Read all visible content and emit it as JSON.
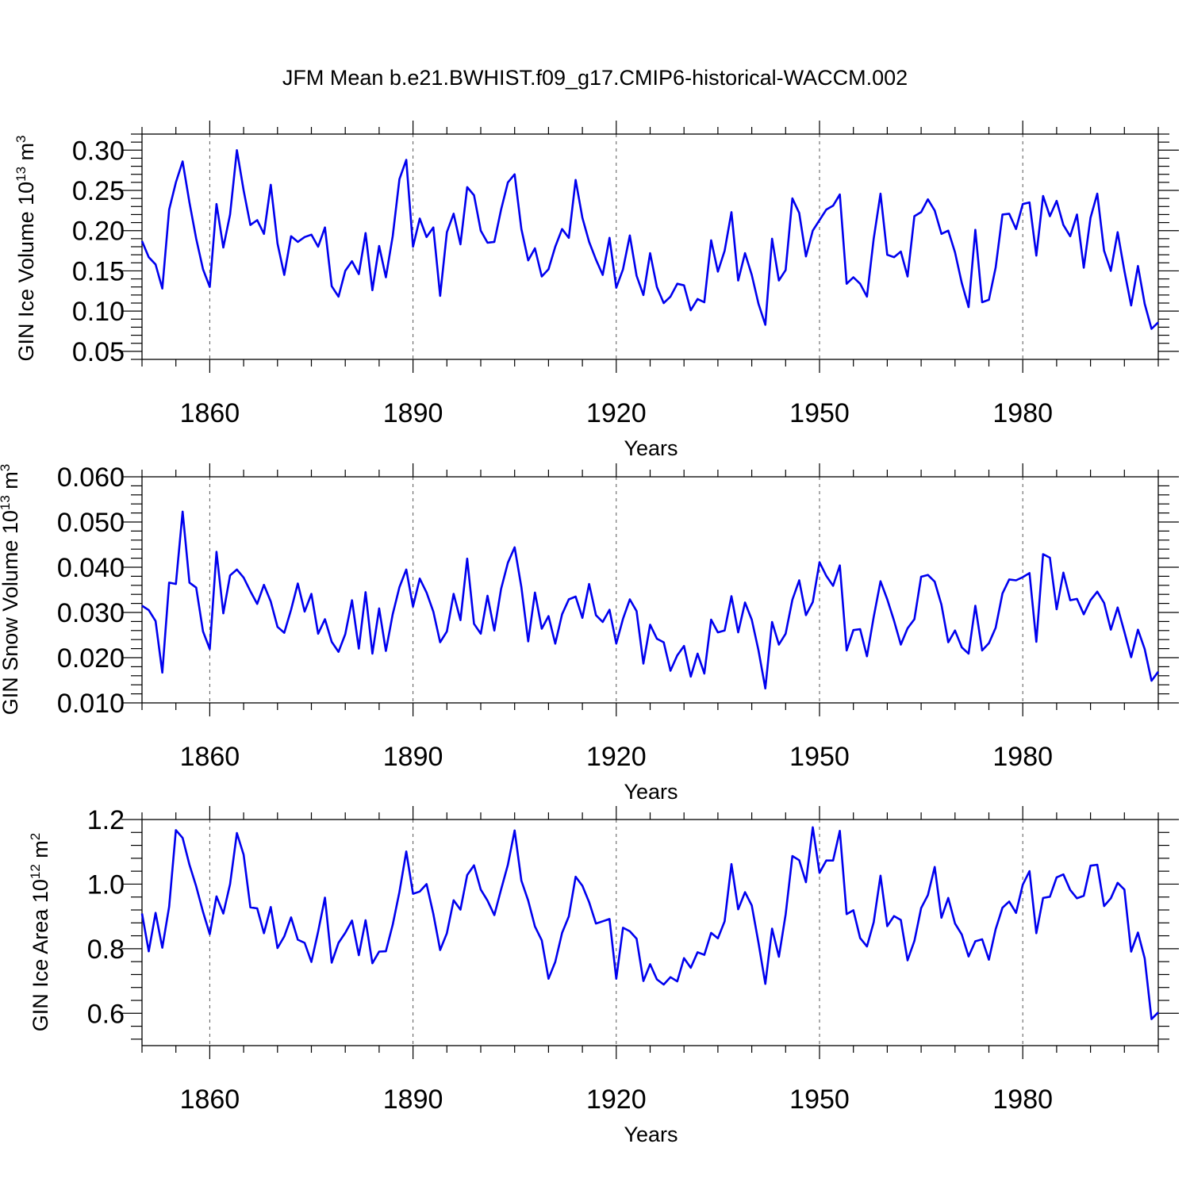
{
  "title": "JFM Mean b.e21.BWHIST.f09_g17.CMIP6-historical-WACCM.002",
  "colors": {
    "line": "#0000ee",
    "frame": "#000000",
    "grid": "#555555"
  },
  "chart_data": [
    {
      "type": "line",
      "ylabel": {
        "base": "GIN Ice Volume 10",
        "exp": "13",
        "unit": " m",
        "unit_exp": "3"
      },
      "xlabel": "Years",
      "xlim": [
        1850,
        2000
      ],
      "ylim": [
        0.04,
        0.32
      ],
      "xticks": [
        1860,
        1890,
        1920,
        1950,
        1980
      ],
      "xtick_labels": [
        "1860",
        "1890",
        "1920",
        "1950",
        "1980"
      ],
      "yticks": [
        0.05,
        0.1,
        0.15,
        0.2,
        0.25,
        0.3
      ],
      "ytick_labels": [
        "0.05",
        "0.10",
        "0.15",
        "0.20",
        "0.25",
        "0.30"
      ],
      "start_year": 1850,
      "values": [
        0.187,
        0.167,
        0.158,
        0.128,
        0.226,
        0.26,
        0.286,
        0.235,
        0.19,
        0.152,
        0.13,
        0.233,
        0.179,
        0.22,
        0.3,
        0.25,
        0.207,
        0.213,
        0.196,
        0.257,
        0.184,
        0.145,
        0.193,
        0.186,
        0.192,
        0.195,
        0.18,
        0.204,
        0.131,
        0.118,
        0.15,
        0.162,
        0.146,
        0.197,
        0.126,
        0.181,
        0.142,
        0.193,
        0.264,
        0.288,
        0.18,
        0.215,
        0.192,
        0.204,
        0.119,
        0.198,
        0.221,
        0.183,
        0.254,
        0.244,
        0.2,
        0.185,
        0.186,
        0.226,
        0.26,
        0.27,
        0.202,
        0.163,
        0.178,
        0.143,
        0.152,
        0.18,
        0.202,
        0.191,
        0.263,
        0.216,
        0.186,
        0.164,
        0.145,
        0.191,
        0.129,
        0.152,
        0.194,
        0.144,
        0.12,
        0.172,
        0.13,
        0.11,
        0.118,
        0.134,
        0.132,
        0.101,
        0.115,
        0.111,
        0.188,
        0.149,
        0.175,
        0.223,
        0.138,
        0.172,
        0.145,
        0.109,
        0.083,
        0.19,
        0.138,
        0.151,
        0.24,
        0.222,
        0.168,
        0.2,
        0.213,
        0.226,
        0.231,
        0.245,
        0.134,
        0.142,
        0.134,
        0.118,
        0.19,
        0.246,
        0.17,
        0.167,
        0.174,
        0.143,
        0.218,
        0.223,
        0.239,
        0.225,
        0.196,
        0.2,
        0.173,
        0.135,
        0.105,
        0.201,
        0.111,
        0.114,
        0.154,
        0.22,
        0.221,
        0.202,
        0.233,
        0.235,
        0.169,
        0.243,
        0.218,
        0.237,
        0.207,
        0.193,
        0.22,
        0.154,
        0.216,
        0.246,
        0.175,
        0.15,
        0.198,
        0.15,
        0.107,
        0.156,
        0.109,
        0.078,
        0.086
      ]
    },
    {
      "type": "line",
      "ylabel": {
        "base": "GIN Snow Volume 10",
        "exp": "13",
        "unit": " m",
        "unit_exp": "3"
      },
      "xlabel": "Years",
      "xlim": [
        1850,
        2000
      ],
      "ylim": [
        0.01,
        0.06
      ],
      "xticks": [
        1860,
        1890,
        1920,
        1950,
        1980
      ],
      "xtick_labels": [
        "1860",
        "1890",
        "1920",
        "1950",
        "1980"
      ],
      "yticks": [
        0.01,
        0.02,
        0.03,
        0.04,
        0.05,
        0.06
      ],
      "ytick_labels": [
        "0.010",
        "0.020",
        "0.030",
        "0.040",
        "0.050",
        "0.060"
      ],
      "start_year": 1850,
      "values": [
        0.0315,
        0.0305,
        0.0281,
        0.0167,
        0.0366,
        0.0363,
        0.0523,
        0.0366,
        0.0355,
        0.0258,
        0.0219,
        0.0434,
        0.0298,
        0.0382,
        0.0395,
        0.0377,
        0.0347,
        0.0319,
        0.0361,
        0.0324,
        0.0268,
        0.0255,
        0.0306,
        0.0364,
        0.0302,
        0.0341,
        0.0253,
        0.0285,
        0.0235,
        0.0213,
        0.0252,
        0.0327,
        0.022,
        0.0345,
        0.0209,
        0.0309,
        0.0215,
        0.0296,
        0.0356,
        0.0395,
        0.0313,
        0.0375,
        0.0344,
        0.0302,
        0.0234,
        0.0258,
        0.0341,
        0.0283,
        0.0419,
        0.0275,
        0.0253,
        0.0337,
        0.026,
        0.0352,
        0.041,
        0.0444,
        0.0356,
        0.0236,
        0.0344,
        0.0264,
        0.0292,
        0.0231,
        0.0296,
        0.0329,
        0.0335,
        0.0288,
        0.0363,
        0.0294,
        0.0279,
        0.0306,
        0.0231,
        0.0286,
        0.0329,
        0.0303,
        0.0187,
        0.0273,
        0.0242,
        0.0234,
        0.0171,
        0.0205,
        0.0226,
        0.0158,
        0.0209,
        0.0165,
        0.0284,
        0.0256,
        0.026,
        0.0336,
        0.0256,
        0.0322,
        0.0284,
        0.0216,
        0.0132,
        0.0279,
        0.0229,
        0.0253,
        0.0328,
        0.0371,
        0.0294,
        0.0323,
        0.0411,
        0.0381,
        0.0359,
        0.0404,
        0.0216,
        0.0261,
        0.0263,
        0.0203,
        0.029,
        0.0369,
        0.0329,
        0.0282,
        0.0229,
        0.0265,
        0.0285,
        0.0379,
        0.0383,
        0.0368,
        0.0317,
        0.0234,
        0.026,
        0.0223,
        0.0209,
        0.0315,
        0.0216,
        0.0232,
        0.0266,
        0.0342,
        0.0373,
        0.0371,
        0.0378,
        0.0387,
        0.0235,
        0.0429,
        0.0421,
        0.0307,
        0.0388,
        0.0327,
        0.033,
        0.0296,
        0.0327,
        0.0346,
        0.0321,
        0.0262,
        0.0311,
        0.0257,
        0.0201,
        0.0262,
        0.0219,
        0.0149,
        0.0169
      ]
    },
    {
      "type": "line",
      "ylabel": {
        "base": "GIN Ice Area 10",
        "exp": "12",
        "unit": " m",
        "unit_exp": "2"
      },
      "xlabel": "Years",
      "xlim": [
        1850,
        2000
      ],
      "ylim": [
        0.5,
        1.2
      ],
      "xticks": [
        1860,
        1890,
        1920,
        1950,
        1980
      ],
      "xtick_labels": [
        "1860",
        "1890",
        "1920",
        "1950",
        "1980"
      ],
      "yticks": [
        0.6,
        0.8,
        1.0,
        1.2
      ],
      "ytick_labels": [
        "0.6",
        "0.8",
        "1.0",
        "1.2"
      ],
      "start_year": 1850,
      "values": [
        0.909,
        0.792,
        0.911,
        0.803,
        0.93,
        1.167,
        1.143,
        1.06,
        0.993,
        0.914,
        0.845,
        0.962,
        0.909,
        1.0,
        1.158,
        1.091,
        0.928,
        0.925,
        0.848,
        0.929,
        0.802,
        0.838,
        0.897,
        0.828,
        0.818,
        0.759,
        0.853,
        0.958,
        0.757,
        0.818,
        0.849,
        0.887,
        0.78,
        0.888,
        0.755,
        0.791,
        0.792,
        0.874,
        0.976,
        1.101,
        0.97,
        0.977,
        1.0,
        0.908,
        0.796,
        0.848,
        0.95,
        0.921,
        1.028,
        1.058,
        0.983,
        0.949,
        0.904,
        0.983,
        1.06,
        1.166,
        1.011,
        0.949,
        0.869,
        0.826,
        0.707,
        0.759,
        0.849,
        0.9,
        1.023,
        0.995,
        0.944,
        0.878,
        0.885,
        0.892,
        0.707,
        0.865,
        0.854,
        0.831,
        0.7,
        0.752,
        0.705,
        0.689,
        0.712,
        0.699,
        0.771,
        0.741,
        0.789,
        0.781,
        0.849,
        0.832,
        0.885,
        1.062,
        0.922,
        0.975,
        0.934,
        0.818,
        0.691,
        0.862,
        0.775,
        0.906,
        1.087,
        1.074,
        1.006,
        1.176,
        1.035,
        1.073,
        1.073,
        1.165,
        0.907,
        0.919,
        0.833,
        0.807,
        0.882,
        1.026,
        0.87,
        0.901,
        0.889,
        0.764,
        0.824,
        0.926,
        0.966,
        1.053,
        0.896,
        0.957,
        0.878,
        0.844,
        0.776,
        0.823,
        0.829,
        0.766,
        0.86,
        0.927,
        0.946,
        0.911,
        0.998,
        1.04,
        0.848,
        0.957,
        0.961,
        1.021,
        1.03,
        0.982,
        0.956,
        0.964,
        1.057,
        1.06,
        0.932,
        0.956,
        1.004,
        0.983,
        0.791,
        0.85,
        0.77,
        0.582,
        0.603
      ]
    }
  ]
}
